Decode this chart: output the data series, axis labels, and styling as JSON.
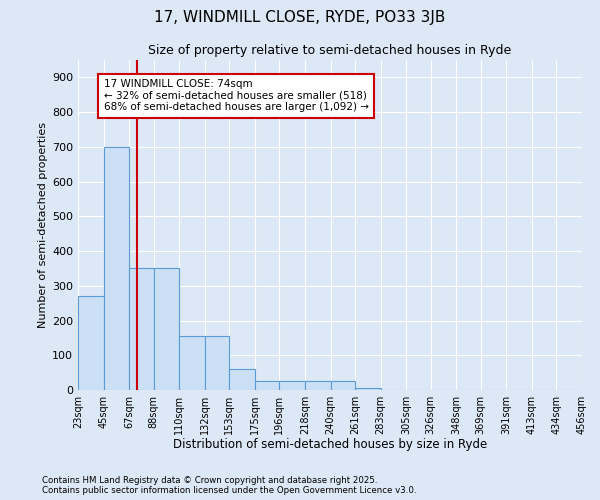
{
  "title1": "17, WINDMILL CLOSE, RYDE, PO33 3JB",
  "title2": "Size of property relative to semi-detached houses in Ryde",
  "xlabel": "Distribution of semi-detached houses by size in Ryde",
  "ylabel": "Number of semi-detached properties",
  "bar_labels": [
    "23sqm",
    "45sqm",
    "67sqm",
    "88sqm",
    "110sqm",
    "132sqm",
    "153sqm",
    "175sqm",
    "196sqm",
    "218sqm",
    "240sqm",
    "261sqm",
    "283sqm",
    "305sqm",
    "326sqm",
    "348sqm",
    "369sqm",
    "391sqm",
    "413sqm",
    "434sqm",
    "456sqm"
  ],
  "bar_values": [
    270,
    700,
    350,
    350,
    155,
    155,
    60,
    25,
    25,
    25,
    25,
    5,
    0,
    0,
    0,
    0,
    0,
    0,
    0,
    0,
    0
  ],
  "bar_color": "#cce0f5",
  "bar_edge_color": "#5b9bd5",
  "background_color": "#dce8f5",
  "grid_color": "#ffffff",
  "property_line_x": 74,
  "annotation_text": "17 WINDMILL CLOSE: 74sqm\n← 32% of semi-detached houses are smaller (518)\n68% of semi-detached houses are larger (1,092) →",
  "annotation_box_color": "#ffffff",
  "annotation_box_edge_color": "#cc0000",
  "vline_color": "#cc0000",
  "ylim": [
    0,
    950
  ],
  "yticks": [
    0,
    100,
    200,
    300,
    400,
    500,
    600,
    700,
    800,
    900
  ],
  "footer1": "Contains HM Land Registry data © Crown copyright and database right 2025.",
  "footer2": "Contains public sector information licensed under the Open Government Licence v3.0."
}
